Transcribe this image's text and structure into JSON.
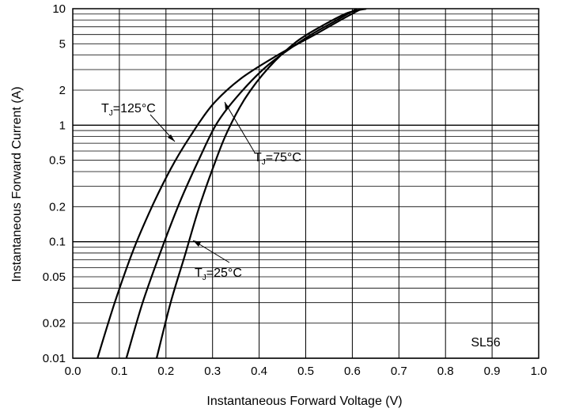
{
  "chart_data": {
    "type": "line",
    "title": "",
    "xlabel": "Instantaneous Forward Voltage (V)",
    "ylabel": "Instantaneous Forward Current (A)",
    "xlim": [
      0.0,
      1.0
    ],
    "ylim": [
      0.01,
      10
    ],
    "yscale": "log",
    "grid": true,
    "x_ticks": [
      "0.0",
      "0.1",
      "0.2",
      "0.3",
      "0.4",
      "0.5",
      "0.6",
      "0.7",
      "0.8",
      "0.9",
      "1.0"
    ],
    "y_ticks": [
      {
        "value": 0.01,
        "label": "0.01"
      },
      {
        "value": 0.02,
        "label": "0.02"
      },
      {
        "value": 0.05,
        "label": "0.05"
      },
      {
        "value": 0.1,
        "label": "0.1"
      },
      {
        "value": 0.2,
        "label": "0.2"
      },
      {
        "value": 0.5,
        "label": "0.5"
      },
      {
        "value": 1,
        "label": "1"
      },
      {
        "value": 2,
        "label": "2"
      },
      {
        "value": 5,
        "label": "5"
      },
      {
        "value": 10,
        "label": "10"
      }
    ],
    "series": [
      {
        "name": "TJ=125°C",
        "label_main": "T",
        "label_sub": "J",
        "label_rest": "=125°C",
        "x": [
          0.053,
          0.09,
          0.13,
          0.17,
          0.21,
          0.25,
          0.3,
          0.36,
          0.44,
          0.52,
          0.58,
          0.62
        ],
        "y": [
          0.01,
          0.03,
          0.085,
          0.2,
          0.42,
          0.78,
          1.5,
          2.5,
          4.0,
          6.0,
          8.2,
          10
        ]
      },
      {
        "name": "TJ=75°C",
        "label_main": "T",
        "label_sub": "J",
        "label_rest": "=75°C",
        "x": [
          0.115,
          0.15,
          0.19,
          0.23,
          0.27,
          0.31,
          0.36,
          0.42,
          0.5,
          0.56,
          0.61
        ],
        "y": [
          0.01,
          0.03,
          0.085,
          0.22,
          0.5,
          1.05,
          1.9,
          3.3,
          5.6,
          7.7,
          10
        ]
      },
      {
        "name": "TJ=25°C",
        "label_main": "T",
        "label_sub": "J",
        "label_rest": "=25°C",
        "x": [
          0.18,
          0.21,
          0.24,
          0.27,
          0.3,
          0.33,
          0.37,
          0.42,
          0.48,
          0.54,
          0.59,
          0.63
        ],
        "y": [
          0.01,
          0.03,
          0.075,
          0.19,
          0.42,
          0.85,
          1.7,
          3.1,
          5.2,
          7.3,
          9.2,
          10
        ]
      }
    ],
    "annotations": [
      {
        "text": "SL56",
        "position": "bottom-right"
      }
    ]
  }
}
